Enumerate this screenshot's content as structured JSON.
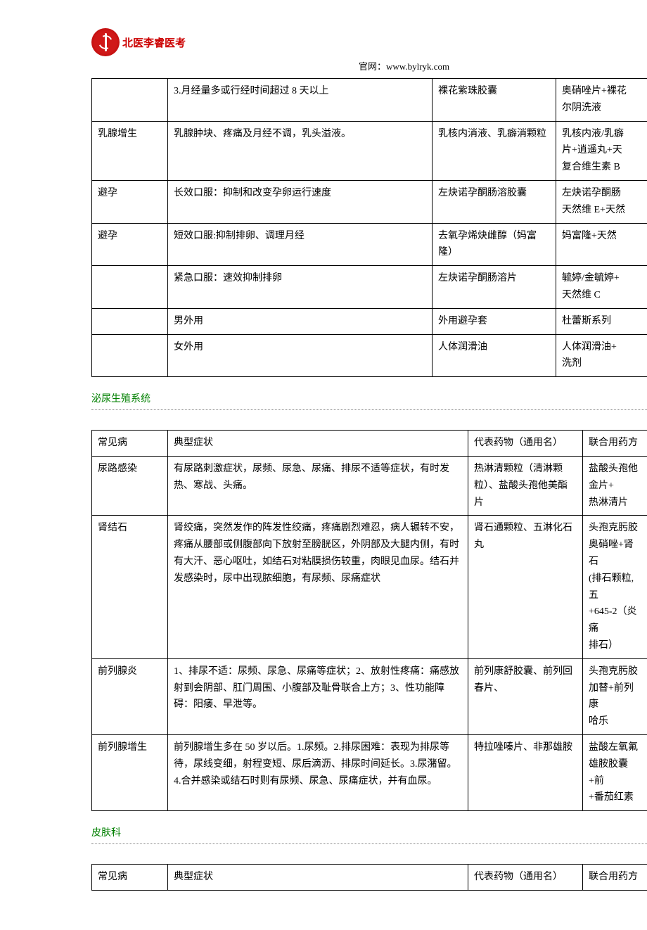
{
  "header": {
    "logo_text": "北医李睿医考",
    "site_label": "官网：",
    "site_url": "www.bylryk.com"
  },
  "sections": {
    "urogenital": "泌尿生殖系统",
    "dermatology": "皮肤科"
  },
  "table1": {
    "columns": [
      "常见病",
      "典型症状",
      "代表药物（通用名）",
      "联合用药方"
    ],
    "rows": [
      [
        "",
        "3.月经量多或行经时间超过 8 天以上",
        "裸花紫珠胶囊",
        "奥硝唑片+裸花\n尔阴洗液"
      ],
      [
        "乳腺增生",
        "乳腺肿块、疼痛及月经不调，乳头溢液。",
        "乳核内消液、乳癖消颗粒",
        "乳核内液/乳癖\n片+逍遥丸+天\n复合维生素 B"
      ],
      [
        "避孕",
        "长效口服：抑制和改变孕卵运行速度",
        "左炔诺孕酮肠溶胶囊",
        "左炔诺孕酮肠\n天然维 E+天然"
      ],
      [
        "避孕",
        "短效口服:抑制排卵、调理月经",
        "去氧孕烯炔雌醇（妈富隆）",
        "妈富隆+天然"
      ],
      [
        "",
        "紧急口服：速效抑制排卵",
        "左炔诺孕酮肠溶片",
        "毓婷/金毓婷+\n天然维 C"
      ],
      [
        "",
        "男外用",
        "外用避孕套",
        "杜蕾斯系列"
      ],
      [
        "",
        "女外用",
        "人体润滑油",
        "人体润滑油+\n洗剂"
      ]
    ]
  },
  "table2": {
    "columns": [
      "常见病",
      "典型症状",
      "代表药物（通用名）",
      "联合用药方"
    ],
    "rows": [
      [
        "尿路感染",
        "有尿路刺激症状，尿频、尿急、尿痛、排尿不适等症状，有时发热、寒战、头痛。",
        "热淋清颗粒（清淋颗粒）、盐酸头孢他美酯片",
        "盐酸头孢他\n金片+\n热淋清片"
      ],
      [
        "肾结石",
        "肾绞痛，突然发作的阵发性绞痛，疼痛剧烈难忍，病人辗转不安，疼痛从腰部或侧腹部向下放射至膀胱区，外阴部及大腿内侧，有时有大汗、恶心呕吐，如结石对粘膜损伤较重，肉眼见血尿。结石并发感染时，尿中出现脓细胞，有尿频、尿痛症状",
        "肾石通颗粒、五淋化石丸",
        "头孢克肟胶\n奥硝唑+肾石\n(排石颗粒,五\n+645-2（炎痛\n排石）"
      ],
      [
        "前列腺炎",
        "1、排尿不适：尿频、尿急、尿痛等症状；2、放射性疼痛：痛感放射到会阴部、肛门周围、小腹部及耻骨联合上方；3、性功能障碍：阳痿、早泄等。",
        "前列康舒胶囊、前列回春片、",
        "头孢克肟胶\n加替+前列康\n哈乐"
      ],
      [
        "前列腺增生",
        "前列腺增生多在 50 岁以后。1.尿频。2.排尿困难：表现为排尿等待，尿线变细，射程变短、尿后滴沥、排尿时间延长。3.尿潴留。4.合并感染或结石时则有尿频、尿急、尿痛症状，并有血尿。",
        "特拉唑嗪片、非那雄胺",
        "盐酸左氧氟\n雄胺胶囊+前\n+番茄红素"
      ]
    ]
  },
  "table3": {
    "columns": [
      "常见病",
      "典型症状",
      "代表药物（通用名）",
      "联合用药方"
    ]
  }
}
